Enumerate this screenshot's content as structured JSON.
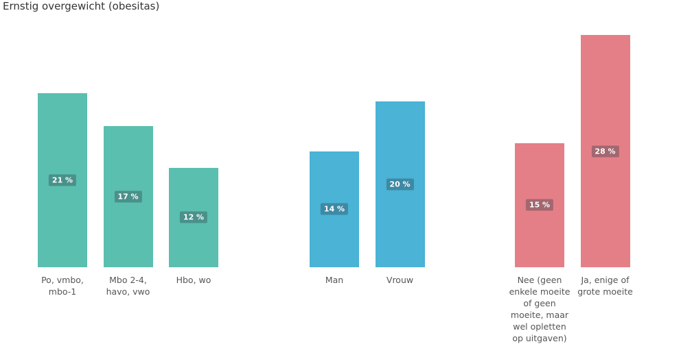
{
  "chart_data": [
    {
      "type": "bar",
      "title": "Ernstig overgewicht (obesitas)",
      "categories": [
        "Po, vmbo, mbo-1",
        "Mbo 2-4, havo, vwo",
        "Hbo, wo"
      ],
      "values": [
        21,
        17,
        12
      ],
      "value_labels": [
        "21 %",
        "17 %",
        "12 %"
      ],
      "color": "#5bbfb0"
    },
    {
      "type": "bar",
      "categories": [
        "Man",
        "Vrouw"
      ],
      "values": [
        14,
        20
      ],
      "value_labels": [
        "14 %",
        "20 %"
      ],
      "color": "#4ab3d6"
    },
    {
      "type": "bar",
      "categories": [
        "Nee (geen enkele moeite of geen moeite, maar wel opletten op uitgaven)",
        "Ja, enige of grote moeite"
      ],
      "values": [
        15,
        28
      ],
      "value_labels": [
        "15 %",
        "28 %"
      ],
      "color": "#e57f87"
    }
  ]
}
